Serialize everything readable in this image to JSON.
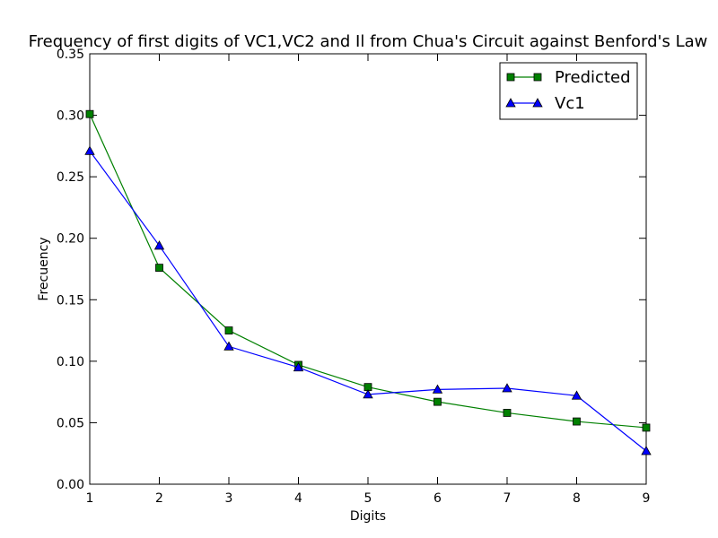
{
  "chart_data": {
    "type": "line",
    "title": "Frequency of first digits of VC1,VC2 and Il from Chua's Circuit  against Benford's Law",
    "xlabel": "Digits",
    "ylabel": "Frecuency",
    "x": [
      1,
      2,
      3,
      4,
      5,
      6,
      7,
      8,
      9
    ],
    "xlim": [
      1,
      9
    ],
    "ylim": [
      0.0,
      0.35
    ],
    "xticks": [
      1,
      2,
      3,
      4,
      5,
      6,
      7,
      8,
      9
    ],
    "yticks": [
      0.0,
      0.05,
      0.1,
      0.15,
      0.2,
      0.25,
      0.3,
      0.35
    ],
    "ytick_labels": [
      "0.00",
      "0.05",
      "0.10",
      "0.15",
      "0.20",
      "0.25",
      "0.30",
      "0.35"
    ],
    "grid": false,
    "legend": "top-right",
    "series": [
      {
        "name": "Predicted",
        "color": "#008000",
        "marker": "square",
        "values": [
          0.301,
          0.176,
          0.125,
          0.097,
          0.079,
          0.067,
          0.058,
          0.051,
          0.046
        ]
      },
      {
        "name": "Vc1",
        "color": "#0000ff",
        "marker": "triangle",
        "values": [
          0.271,
          0.194,
          0.112,
          0.095,
          0.073,
          0.077,
          0.078,
          0.072,
          0.027
        ]
      }
    ]
  }
}
